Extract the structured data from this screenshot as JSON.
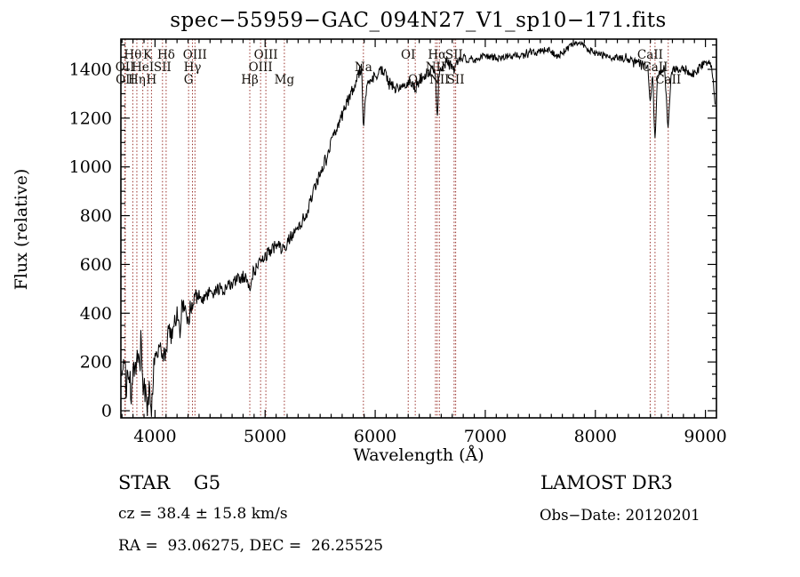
{
  "title": "spec−55959−GAC_094N27_V1_sp10−171.fits",
  "footer": {
    "class_line": "STAR    G5",
    "cz_line": "cz = 38.4 ± 15.8 km/s",
    "radec_line": "RA =  93.06275, DEC =  26.25525",
    "survey": "LAMOST DR3",
    "obs_date": "Obs−Date: 20120201"
  },
  "colors": {
    "spectrum": "#000000",
    "frame": "#000000",
    "line_marker": "#9a322c",
    "background": "#ffffff"
  },
  "chart_data": {
    "type": "line",
    "title": "spec−55959−GAC_094N27_V1_sp10−171.fits",
    "xlabel": "Wavelength (Å)",
    "ylabel": "Flux (relative)",
    "xlim": [
      3690,
      9100
    ],
    "ylim": [
      -30,
      1530
    ],
    "xticks": [
      4000,
      5000,
      6000,
      7000,
      8000,
      9000
    ],
    "yticks": [
      0,
      200,
      400,
      600,
      800,
      1000,
      1200,
      1400
    ],
    "x_minor_step": 100,
    "y_minor_step": 50,
    "grid": false,
    "legend": "none",
    "series": [
      {
        "name": "spectrum",
        "points": [
          [
            3698,
            130
          ],
          [
            3715,
            260
          ],
          [
            3728,
            170
          ],
          [
            3740,
            60
          ],
          [
            3755,
            190
          ],
          [
            3770,
            130
          ],
          [
            3785,
            60
          ],
          [
            3800,
            170
          ],
          [
            3815,
            120
          ],
          [
            3830,
            190
          ],
          [
            3845,
            230
          ],
          [
            3860,
            160
          ],
          [
            3875,
            250
          ],
          [
            3890,
            130
          ],
          [
            3905,
            90
          ],
          [
            3920,
            50
          ],
          [
            3933,
            5
          ],
          [
            3945,
            80
          ],
          [
            3957,
            40
          ],
          [
            3968,
            10
          ],
          [
            3980,
            90
          ],
          [
            3995,
            200
          ],
          [
            4010,
            240
          ],
          [
            4025,
            220
          ],
          [
            4040,
            260
          ],
          [
            4055,
            240
          ],
          [
            4068,
            210
          ],
          [
            4085,
            250
          ],
          [
            4101,
            230
          ],
          [
            4115,
            290
          ],
          [
            4130,
            320
          ],
          [
            4150,
            300
          ],
          [
            4170,
            350
          ],
          [
            4190,
            380
          ],
          [
            4210,
            400
          ],
          [
            4226,
            310
          ],
          [
            4240,
            420
          ],
          [
            4260,
            430
          ],
          [
            4280,
            415
          ],
          [
            4300,
            360
          ],
          [
            4320,
            420
          ],
          [
            4340,
            430
          ],
          [
            4363,
            450
          ],
          [
            4385,
            470
          ],
          [
            4410,
            475
          ],
          [
            4440,
            460
          ],
          [
            4470,
            475
          ],
          [
            4500,
            485
          ],
          [
            4530,
            470
          ],
          [
            4560,
            495
          ],
          [
            4590,
            500
          ],
          [
            4620,
            495
          ],
          [
            4650,
            505
          ],
          [
            4680,
            515
          ],
          [
            4710,
            520
          ],
          [
            4740,
            535
          ],
          [
            4770,
            545
          ],
          [
            4800,
            550
          ],
          [
            4830,
            555
          ],
          [
            4861,
            480
          ],
          [
            4880,
            560
          ],
          [
            4900,
            575
          ],
          [
            4930,
            590
          ],
          [
            4960,
            610
          ],
          [
            5000,
            635
          ],
          [
            5040,
            655
          ],
          [
            5080,
            670
          ],
          [
            5110,
            675
          ],
          [
            5140,
            665
          ],
          [
            5175,
            655
          ],
          [
            5210,
            700
          ],
          [
            5250,
            725
          ],
          [
            5290,
            750
          ],
          [
            5330,
            775
          ],
          [
            5370,
            805
          ],
          [
            5410,
            855
          ],
          [
            5450,
            910
          ],
          [
            5490,
            960
          ],
          [
            5530,
            1010
          ],
          [
            5570,
            1060
          ],
          [
            5610,
            1110
          ],
          [
            5650,
            1155
          ],
          [
            5690,
            1200
          ],
          [
            5730,
            1245
          ],
          [
            5770,
            1290
          ],
          [
            5810,
            1335
          ],
          [
            5845,
            1375
          ],
          [
            5875,
            1405
          ],
          [
            5893,
            1160
          ],
          [
            5910,
            1290
          ],
          [
            5935,
            1345
          ],
          [
            5960,
            1360
          ],
          [
            5990,
            1370
          ],
          [
            6020,
            1385
          ],
          [
            6060,
            1400
          ],
          [
            6090,
            1380
          ],
          [
            6120,
            1355
          ],
          [
            6150,
            1335
          ],
          [
            6180,
            1320
          ],
          [
            6210,
            1320
          ],
          [
            6240,
            1330
          ],
          [
            6270,
            1340
          ],
          [
            6300,
            1345
          ],
          [
            6330,
            1340
          ],
          [
            6364,
            1325
          ],
          [
            6400,
            1355
          ],
          [
            6440,
            1375
          ],
          [
            6480,
            1390
          ],
          [
            6520,
            1395
          ],
          [
            6545,
            1380
          ],
          [
            6563,
            1205
          ],
          [
            6580,
            1370
          ],
          [
            6610,
            1410
          ],
          [
            6650,
            1430
          ],
          [
            6680,
            1420
          ],
          [
            6717,
            1395
          ],
          [
            6740,
            1425
          ],
          [
            6770,
            1440
          ],
          [
            6800,
            1450
          ],
          [
            6830,
            1440
          ],
          [
            6870,
            1430
          ],
          [
            6910,
            1440
          ],
          [
            6950,
            1450
          ],
          [
            7000,
            1455
          ],
          [
            7060,
            1450
          ],
          [
            7120,
            1445
          ],
          [
            7180,
            1450
          ],
          [
            7240,
            1455
          ],
          [
            7300,
            1460
          ],
          [
            7360,
            1455
          ],
          [
            7420,
            1465
          ],
          [
            7480,
            1475
          ],
          [
            7540,
            1480
          ],
          [
            7600,
            1470
          ],
          [
            7660,
            1455
          ],
          [
            7720,
            1475
          ],
          [
            7780,
            1495
          ],
          [
            7840,
            1505
          ],
          [
            7900,
            1495
          ],
          [
            7960,
            1475
          ],
          [
            8020,
            1465
          ],
          [
            8080,
            1455
          ],
          [
            8140,
            1450
          ],
          [
            8200,
            1448
          ],
          [
            8260,
            1442
          ],
          [
            8320,
            1438
          ],
          [
            8380,
            1432
          ],
          [
            8440,
            1425
          ],
          [
            8475,
            1415
          ],
          [
            8498,
            1265
          ],
          [
            8520,
            1390
          ],
          [
            8542,
            1105
          ],
          [
            8565,
            1380
          ],
          [
            8600,
            1400
          ],
          [
            8630,
            1405
          ],
          [
            8662,
            1145
          ],
          [
            8690,
            1385
          ],
          [
            8730,
            1408
          ],
          [
            8770,
            1405
          ],
          [
            8810,
            1400
          ],
          [
            8850,
            1392
          ],
          [
            8890,
            1385
          ],
          [
            8930,
            1400
          ],
          [
            8970,
            1415
          ],
          [
            9010,
            1432
          ],
          [
            9040,
            1420
          ],
          [
            9065,
            1385
          ],
          [
            9080,
            1300
          ],
          [
            9092,
            1235
          ]
        ]
      }
    ],
    "noise_bands": [
      {
        "max_wavelength": 4000,
        "amplitude": 60
      },
      {
        "max_wavelength": 4400,
        "amplitude": 38
      },
      {
        "max_wavelength": 5400,
        "amplitude": 26
      },
      {
        "max_wavelength": 6700,
        "amplitude": 24
      },
      {
        "max_wavelength": 8400,
        "amplitude": 15
      },
      {
        "max_wavelength": 9200,
        "amplitude": 20
      }
    ],
    "spectral_lines": [
      {
        "label": "OII",
        "wavelength": 3727,
        "row": 2
      },
      {
        "label": "OII",
        "wavelength": 3730,
        "row": 3
      },
      {
        "label": "Hθ",
        "wavelength": 3798,
        "row": 1
      },
      {
        "label": "Hη",
        "wavelength": 3835,
        "row": 3
      },
      {
        "label": "HeI",
        "wavelength": 3889,
        "row": 2
      },
      {
        "label": "K",
        "wavelength": 3933,
        "row": 1
      },
      {
        "label": "H",
        "wavelength": 3968,
        "row": 3
      },
      {
        "label": "SII",
        "wavelength": 4068,
        "row": 2
      },
      {
        "label": "Hδ",
        "wavelength": 4101,
        "row": 1
      },
      {
        "label": "G",
        "wavelength": 4305,
        "row": 3
      },
      {
        "label": "Hγ",
        "wavelength": 4340,
        "row": 2
      },
      {
        "label": "OIII",
        "wavelength": 4363,
        "row": 1
      },
      {
        "label": "Hβ",
        "wavelength": 4861,
        "row": 3
      },
      {
        "label": "OIII",
        "wavelength": 4959,
        "row": 2
      },
      {
        "label": "OIII",
        "wavelength": 5007,
        "row": 1
      },
      {
        "label": "Mg",
        "wavelength": 5175,
        "row": 3
      },
      {
        "label": "Na",
        "wavelength": 5893,
        "row": 2
      },
      {
        "label": "OI",
        "wavelength": 6300,
        "row": 1
      },
      {
        "label": "OI",
        "wavelength": 6364,
        "row": 3
      },
      {
        "label": "NII",
        "wavelength": 6548,
        "row": 2
      },
      {
        "label": "Hα",
        "wavelength": 6563,
        "row": 1
      },
      {
        "label": "NII",
        "wavelength": 6583,
        "row": 3
      },
      {
        "label": "SII",
        "wavelength": 6717,
        "row": 1
      },
      {
        "label": "SII",
        "wavelength": 6731,
        "row": 3
      },
      {
        "label": "CaII",
        "wavelength": 8498,
        "row": 1
      },
      {
        "label": "CaII",
        "wavelength": 8542,
        "row": 2
      },
      {
        "label": "CaII",
        "wavelength": 8662,
        "row": 3
      }
    ]
  }
}
